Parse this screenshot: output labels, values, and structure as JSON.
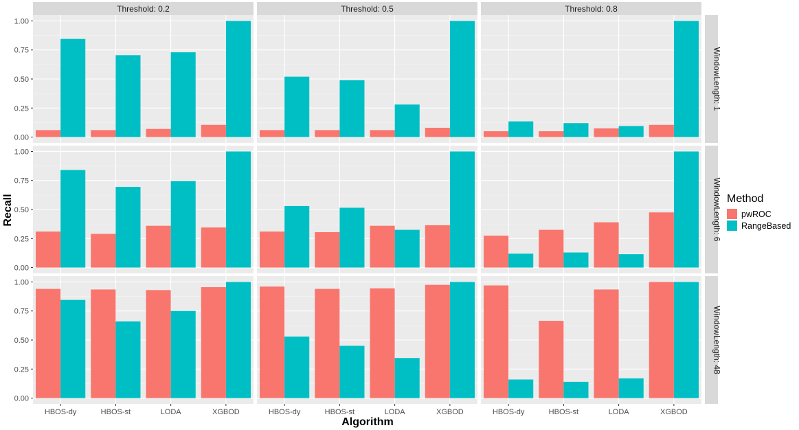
{
  "chart_data": {
    "type": "bar",
    "xlabel": "Algorithm",
    "ylabel": "Recall",
    "ylim": [
      0,
      1
    ],
    "yticks": [
      0,
      0.25,
      0.5,
      0.75,
      1
    ],
    "ytick_labels": [
      "0.00",
      "0.25",
      "0.50",
      "0.75",
      "1.00"
    ],
    "categories": [
      "HBOS-dy",
      "HBOS-st",
      "LODA",
      "XGBOD"
    ],
    "col_strips": [
      "Threshold: 0.2",
      "Threshold: 0.5",
      "Threshold: 0.8"
    ],
    "row_strips": [
      "WindowLength: 1",
      "WindowLength: 6",
      "WindowLength: 48"
    ],
    "legend": {
      "title": "Method",
      "position": "right",
      "entries": [
        {
          "name": "pwROC",
          "color": "#F8766D"
        },
        {
          "name": "RangeBased",
          "color": "#00BFC4"
        }
      ]
    },
    "panels": [
      {
        "row": 0,
        "col": 0,
        "pwROC": [
          0.06,
          0.06,
          0.07,
          0.105
        ],
        "RangeBased": [
          0.845,
          0.705,
          0.73,
          1.0
        ]
      },
      {
        "row": 0,
        "col": 1,
        "pwROC": [
          0.06,
          0.06,
          0.06,
          0.08
        ],
        "RangeBased": [
          0.52,
          0.49,
          0.28,
          1.0
        ]
      },
      {
        "row": 0,
        "col": 2,
        "pwROC": [
          0.05,
          0.05,
          0.075,
          0.105
        ],
        "RangeBased": [
          0.135,
          0.12,
          0.095,
          1.0
        ]
      },
      {
        "row": 1,
        "col": 0,
        "pwROC": [
          0.31,
          0.29,
          0.36,
          0.345
        ],
        "RangeBased": [
          0.84,
          0.695,
          0.745,
          1.0
        ]
      },
      {
        "row": 1,
        "col": 1,
        "pwROC": [
          0.31,
          0.305,
          0.36,
          0.365
        ],
        "RangeBased": [
          0.53,
          0.515,
          0.325,
          1.0
        ]
      },
      {
        "row": 1,
        "col": 2,
        "pwROC": [
          0.275,
          0.325,
          0.39,
          0.475
        ],
        "RangeBased": [
          0.12,
          0.13,
          0.115,
          1.0
        ]
      },
      {
        "row": 2,
        "col": 0,
        "pwROC": [
          0.94,
          0.935,
          0.93,
          0.955
        ],
        "RangeBased": [
          0.845,
          0.66,
          0.75,
          1.0
        ]
      },
      {
        "row": 2,
        "col": 1,
        "pwROC": [
          0.96,
          0.94,
          0.945,
          0.975
        ],
        "RangeBased": [
          0.53,
          0.45,
          0.345,
          1.0
        ]
      },
      {
        "row": 2,
        "col": 2,
        "pwROC": [
          0.97,
          0.665,
          0.935,
          1.0
        ],
        "RangeBased": [
          0.16,
          0.14,
          0.17,
          1.0
        ]
      }
    ]
  }
}
